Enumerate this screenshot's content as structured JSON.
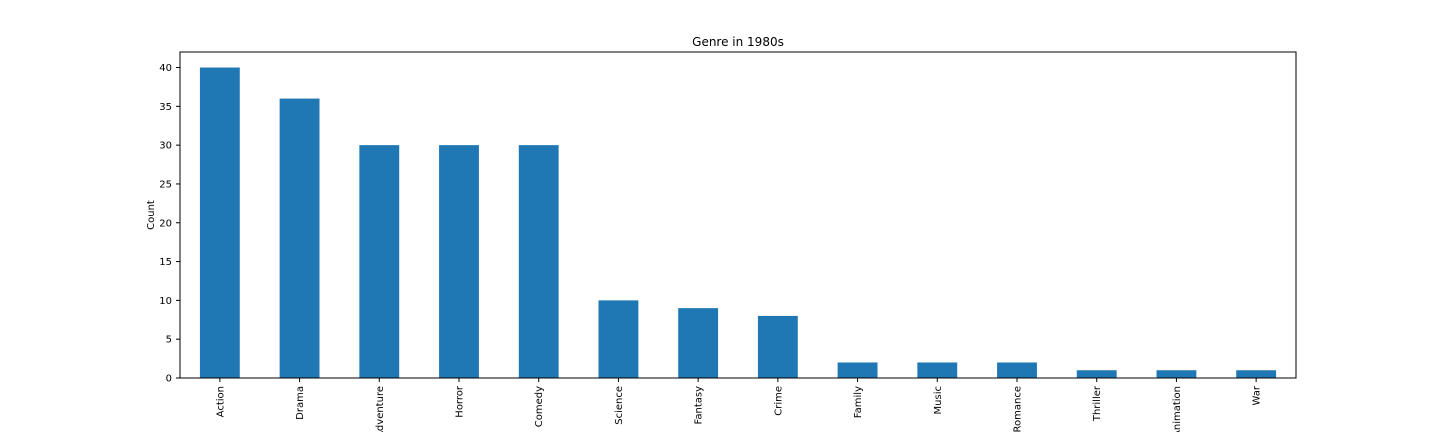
{
  "chart_data": {
    "type": "bar",
    "title": "Genre in 1980s",
    "xlabel": "",
    "ylabel": "Count",
    "categories": [
      "Action",
      "Drama",
      "Adventure",
      "Horror",
      "Comedy",
      "Science",
      "Fantasy",
      "Crime",
      "Family",
      "Music",
      "Romance",
      "Thriller",
      "Animation",
      "War"
    ],
    "values": [
      40,
      36,
      30,
      30,
      30,
      10,
      9,
      8,
      2,
      2,
      2,
      1,
      1,
      1
    ],
    "ylim": [
      0,
      42
    ],
    "yticks": [
      0,
      5,
      10,
      15,
      20,
      25,
      30,
      35,
      40
    ],
    "bar_color": "#1f77b4",
    "grid": false,
    "legend": false
  }
}
